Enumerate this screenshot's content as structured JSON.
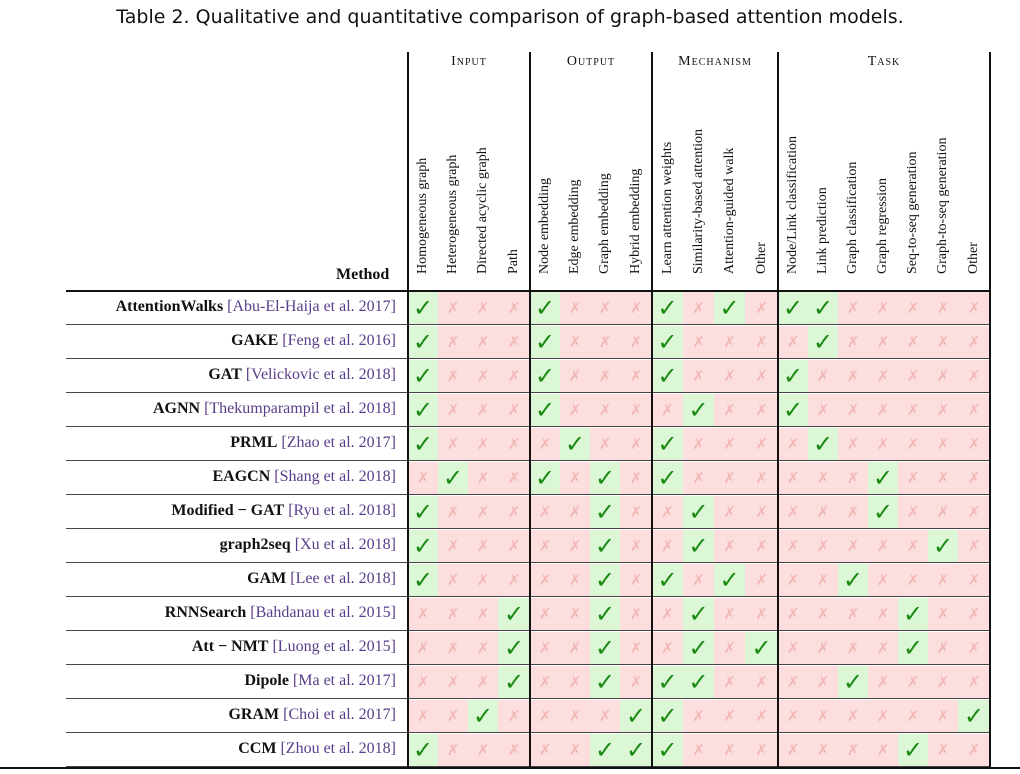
{
  "caption": "Table 2.  Qualitative and quantitative comparison of graph-based attention models.",
  "method_header": "Method",
  "groups": [
    {
      "label": "Input"
    },
    {
      "label": "Output"
    },
    {
      "label": "Mechanism"
    },
    {
      "label": "Task"
    }
  ],
  "columns": [
    "Homogeneous graph",
    "Heterogeneous graph",
    "Directed acyclic graph",
    "Path",
    "Node embedding",
    "Edge embedding",
    "Graph embedding",
    "Hybrid embedding",
    "Learn attention weights",
    "Similarity-based attention",
    "Attention-guided walk",
    "Other",
    "Node/Link classification",
    "Link prediction",
    "Graph classification",
    "Graph regression",
    "Seq-to-seq generation",
    "Graph-to-seq generation",
    "Other"
  ],
  "symbols": {
    "yes": "✓",
    "no": "✗"
  },
  "colors": {
    "yes_bg": "#dcf7d6",
    "yes_fg": "#1a8a12",
    "no_bg": "#fbdedd",
    "no_fg": "#f2b8b6",
    "citation": "#5a3d8a"
  },
  "chart_data": {
    "type": "table",
    "rows": [
      {
        "method": "AttentionWalks",
        "citation": "[Abu-El-Haija et al. 2017]",
        "cells": "1000100010101100000"
      },
      {
        "method": "GAKE",
        "citation": "[Feng et al. 2016]",
        "cells": "1000100010000100000"
      },
      {
        "method": "GAT",
        "citation": "[Velickovic et al. 2018]",
        "cells": "1000100010001000000"
      },
      {
        "method": "AGNN",
        "citation": "[Thekumparampil et al. 2018]",
        "cells": "1000100001001000000"
      },
      {
        "method": "PRML",
        "citation": "[Zhao et al. 2017]",
        "cells": "1000010010000100000"
      },
      {
        "method": "EAGCN",
        "citation": "[Shang et al. 2018]",
        "cells": "0100101010000001000"
      },
      {
        "method": "Modified − GAT",
        "citation": "[Ryu et al. 2018]",
        "cells": "1000001001000001000"
      },
      {
        "method": "graph2seq",
        "citation": "[Xu et al. 2018]",
        "cells": "1000001001000000010"
      },
      {
        "method": "GAM",
        "citation": "[Lee et al. 2018]",
        "cells": "1000001010100010000"
      },
      {
        "method": "RNNSearch",
        "citation": "[Bahdanau et al. 2015]",
        "cells": "0001001001000000100"
      },
      {
        "method": "Att − NMT",
        "citation": "[Luong et al. 2015]",
        "cells": "0001001001010000100"
      },
      {
        "method": "Dipole",
        "citation": "[Ma et al. 2017]",
        "cells": "0001001011000010000"
      },
      {
        "method": "GRAM",
        "citation": "[Choi et al. 2017]",
        "cells": "0010000110000000001"
      },
      {
        "method": "CCM",
        "citation": "[Zhou et al. 2018]",
        "cells": "1000001110000000100"
      }
    ]
  }
}
